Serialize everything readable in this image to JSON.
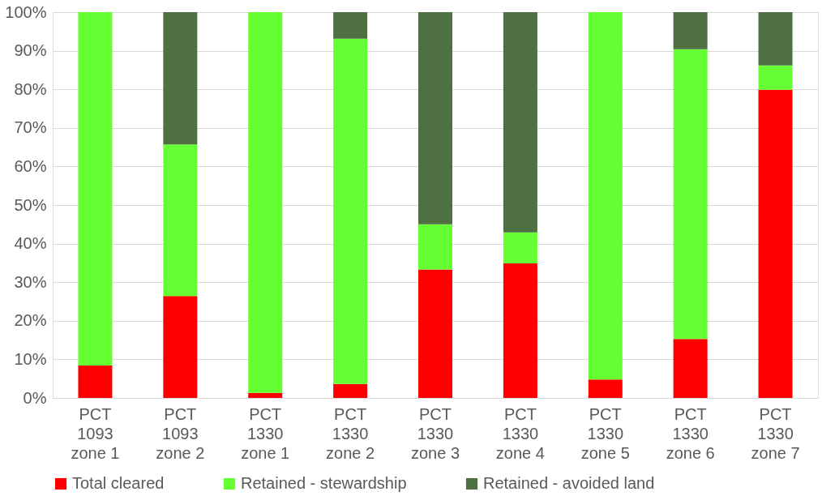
{
  "chart_data": {
    "type": "bar",
    "stacked": true,
    "categories": [
      "PCT\n1093\nzone 1",
      "PCT\n1093\nzone 2",
      "PCT\n1330\nzone 1",
      "PCT\n1330\nzone 2",
      "PCT\n1330\nzone 3",
      "PCT\n1330\nzone 4",
      "PCT\n1330\nzone 5",
      "PCT\n1330\nzone 6",
      "PCT\n1330\nzone 7"
    ],
    "series": [
      {
        "name": "Total cleared",
        "color": "#ff0000",
        "values": [
          8.4,
          26.4,
          1.3,
          3.6,
          33.3,
          34.9,
          4.8,
          15.3,
          79.9
        ]
      },
      {
        "name": "Retained - stewardship",
        "color": "#66ff33",
        "values": [
          91.6,
          39.3,
          98.7,
          89.5,
          11.7,
          8.0,
          95.2,
          75.1,
          6.3
        ]
      },
      {
        "name": "Retained - avoided land",
        "color": "#4e7043",
        "values": [
          0,
          34.3,
          0,
          6.9,
          55.0,
          57.1,
          0,
          9.6,
          13.8
        ]
      }
    ],
    "ylim": [
      0,
      100
    ],
    "yticks": [
      {
        "value": 0,
        "label": "0%"
      },
      {
        "value": 10,
        "label": "10%"
      },
      {
        "value": 20,
        "label": "20%"
      },
      {
        "value": 30,
        "label": "30%"
      },
      {
        "value": 40,
        "label": "40%"
      },
      {
        "value": 50,
        "label": "50%"
      },
      {
        "value": 60,
        "label": "60%"
      },
      {
        "value": 70,
        "label": "70%"
      },
      {
        "value": 80,
        "label": "80%"
      },
      {
        "value": 90,
        "label": "90%"
      },
      {
        "value": 100,
        "label": "100%"
      }
    ],
    "grid": "y",
    "legend": "bottom"
  }
}
